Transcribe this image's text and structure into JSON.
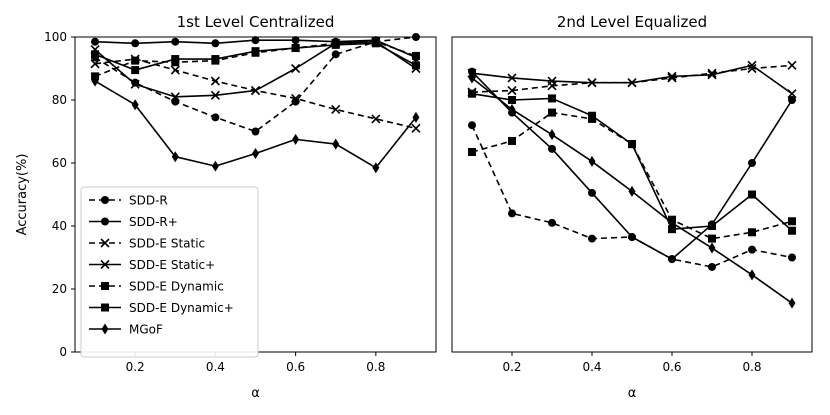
{
  "chart_data": [
    {
      "type": "line",
      "title": "1st Level Centralized",
      "xlabel": "α",
      "ylabel": "Accuracy(%)",
      "xlim": [
        0.05,
        0.95
      ],
      "ylim": [
        0,
        100
      ],
      "xticks": [
        "0.2",
        "0.4",
        "0.6",
        "0.8"
      ],
      "yticks": [
        "0",
        "20",
        "40",
        "60",
        "80",
        "100"
      ],
      "x": [
        0.1,
        0.2,
        0.3,
        0.4,
        0.5,
        0.6,
        0.7,
        0.8,
        0.9
      ],
      "series": [
        {
          "name": "SDD-R",
          "marker": "circle",
          "dashed": true,
          "values": [
            93.5,
            85.5,
            79.5,
            74.5,
            70,
            79.5,
            94.5,
            98.5,
            100
          ]
        },
        {
          "name": "SDD-R+",
          "marker": "circle",
          "dashed": false,
          "values": [
            98.5,
            98,
            98.5,
            98,
            99,
            99,
            98.5,
            99,
            93.5
          ]
        },
        {
          "name": "SDD-E Static",
          "marker": "x",
          "dashed": true,
          "values": [
            91.5,
            93,
            89.5,
            86,
            83,
            80.5,
            77,
            74,
            71
          ]
        },
        {
          "name": "SDD-E Static+",
          "marker": "x",
          "dashed": false,
          "values": [
            96,
            85,
            81,
            81.5,
            83,
            90,
            98,
            98.5,
            90
          ]
        },
        {
          "name": "SDD-E Dynamic",
          "marker": "square",
          "dashed": true,
          "values": [
            87.5,
            92.5,
            92,
            92.5,
            95,
            96.5,
            98,
            98.5,
            94
          ]
        },
        {
          "name": "SDD-E Dynamic+",
          "marker": "square",
          "dashed": false,
          "values": [
            94.5,
            89.5,
            93,
            93,
            95.5,
            96.5,
            97.5,
            98,
            91
          ]
        },
        {
          "name": "MGoF",
          "marker": "diamond",
          "dashed": false,
          "values": [
            86,
            78.5,
            62,
            59,
            63,
            67.5,
            66,
            58.5,
            74.5
          ]
        }
      ]
    },
    {
      "type": "line",
      "title": "2nd Level Equalized",
      "xlabel": "α",
      "xlim": [
        0.05,
        0.95
      ],
      "ylim": [
        0,
        100
      ],
      "xticks": [
        "0.2",
        "0.4",
        "0.6",
        "0.8"
      ],
      "x": [
        0.1,
        0.2,
        0.3,
        0.4,
        0.5,
        0.6,
        0.7,
        0.8,
        0.9
      ],
      "series": [
        {
          "name": "SDD-R",
          "marker": "circle",
          "dashed": true,
          "values": [
            72,
            44,
            41,
            36,
            36.5,
            29.5,
            27,
            32.5,
            30
          ]
        },
        {
          "name": "SDD-R+",
          "marker": "circle",
          "dashed": false,
          "values": [
            89,
            76,
            64.5,
            50.5,
            36.5,
            29.5,
            40.5,
            60,
            80
          ]
        },
        {
          "name": "SDD-E Static",
          "marker": "x",
          "dashed": true,
          "values": [
            82.5,
            83,
            84.5,
            85.5,
            85.5,
            87,
            88.5,
            90,
            91
          ]
        },
        {
          "name": "SDD-E Static+",
          "marker": "x",
          "dashed": false,
          "values": [
            88.5,
            87,
            86,
            85.5,
            85.5,
            87.5,
            88,
            91,
            82
          ]
        },
        {
          "name": "SDD-E Dynamic",
          "marker": "square",
          "dashed": true,
          "values": [
            63.5,
            67,
            76,
            74,
            66,
            42,
            36,
            38,
            41.5
          ]
        },
        {
          "name": "SDD-E Dynamic+",
          "marker": "square",
          "dashed": false,
          "values": [
            82,
            80,
            80.5,
            75,
            66,
            39,
            40,
            50,
            38.5
          ]
        },
        {
          "name": "MGoF",
          "marker": "diamond",
          "dashed": false,
          "values": [
            87,
            77,
            69,
            60.5,
            51,
            41,
            33,
            24.5,
            15.5
          ]
        }
      ]
    }
  ]
}
